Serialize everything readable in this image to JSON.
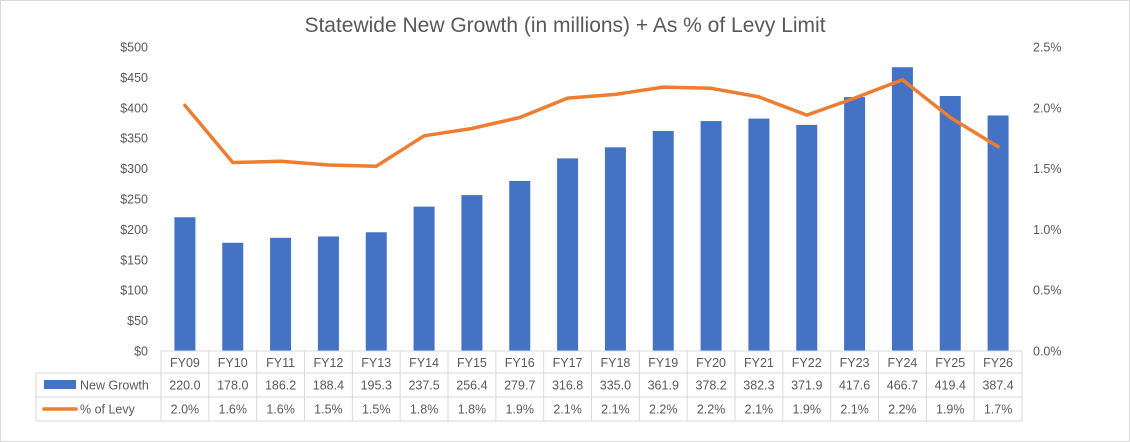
{
  "chart_data": {
    "type": "bar+line",
    "title": "Statewide New Growth (in millions) + As % of Levy Limit",
    "categories": [
      "FY09",
      "FY10",
      "FY11",
      "FY12",
      "FY13",
      "FY14",
      "FY15",
      "FY16",
      "FY17",
      "FY18",
      "FY19",
      "FY20",
      "FY21",
      "FY22",
      "FY23",
      "FY24",
      "FY25",
      "FY26"
    ],
    "series": [
      {
        "name": "New Growth",
        "type": "bar",
        "axis": "left",
        "color": "#4472c4",
        "values": [
          220.0,
          178.0,
          186.2,
          188.4,
          195.3,
          237.5,
          256.4,
          279.7,
          316.8,
          335.0,
          361.9,
          378.2,
          382.3,
          371.9,
          417.6,
          466.7,
          419.4,
          387.4
        ],
        "table_labels": [
          "220.0",
          "178.0",
          "186.2",
          "188.4",
          "195.3",
          "237.5",
          "256.4",
          "279.7",
          "316.8",
          "335.0",
          "361.9",
          "378.2",
          "382.3",
          "371.9",
          "417.6",
          "466.7",
          "419.4",
          "387.4"
        ]
      },
      {
        "name": "% of Levy",
        "type": "line",
        "axis": "right",
        "color": "#ed7d31",
        "values": [
          2.02,
          1.55,
          1.56,
          1.53,
          1.52,
          1.77,
          1.83,
          1.92,
          2.08,
          2.11,
          2.17,
          2.16,
          2.09,
          1.94,
          2.08,
          2.23,
          1.92,
          1.68
        ],
        "table_labels": [
          "2.0%",
          "1.6%",
          "1.6%",
          "1.5%",
          "1.5%",
          "1.8%",
          "1.8%",
          "1.9%",
          "2.1%",
          "2.1%",
          "2.2%",
          "2.2%",
          "2.1%",
          "1.9%",
          "2.1%",
          "2.2%",
          "1.9%",
          "1.7%"
        ]
      }
    ],
    "y_left": {
      "ylim": [
        0,
        500
      ],
      "ticks": [
        "$0",
        "$50",
        "$100",
        "$150",
        "$200",
        "$250",
        "$300",
        "$350",
        "$400",
        "$450",
        "$500"
      ]
    },
    "y_right": {
      "ylim": [
        0,
        2.5
      ],
      "ticks": [
        "0.0%",
        "0.5%",
        "1.0%",
        "1.5%",
        "2.0%",
        "2.5%"
      ]
    },
    "grid": false,
    "legend": "data-table-bottom"
  }
}
